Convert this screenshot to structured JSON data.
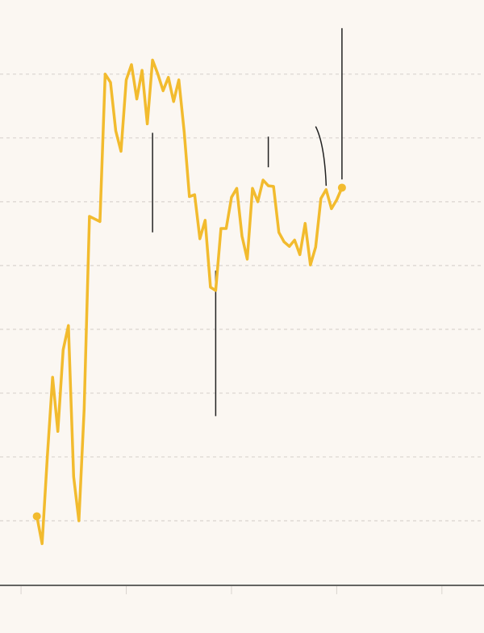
{
  "colors": {
    "background": "#fbf7f2",
    "line": "#f2bb2e",
    "grid": "#d9d4cf",
    "axis": "#333333",
    "annotation": "#222222"
  },
  "chart_data": {
    "type": "line",
    "title": "",
    "xlabel": "",
    "ylabel": "",
    "grid": true,
    "legend": "none",
    "xlim": [
      0,
      92
    ],
    "ylim": [
      0,
      8.2
    ],
    "y_gridlines": [
      1,
      2,
      3,
      4,
      5,
      6,
      7,
      8
    ],
    "x_ticks": [
      4,
      24,
      44,
      64,
      84
    ],
    "series": [
      {
        "values": [
          [
            7,
            1.07
          ],
          [
            8,
            0.64
          ],
          [
            9,
            2.01
          ],
          [
            10,
            3.25
          ],
          [
            11,
            2.4
          ],
          [
            12,
            3.68
          ],
          [
            13,
            4.06
          ],
          [
            14,
            1.69
          ],
          [
            15,
            1.0
          ],
          [
            16,
            2.74
          ],
          [
            17,
            5.77
          ],
          [
            18,
            5.73
          ],
          [
            19,
            5.69
          ],
          [
            20,
            8.0
          ],
          [
            21,
            7.87
          ],
          [
            22,
            7.11
          ],
          [
            23,
            6.79
          ],
          [
            24,
            7.91
          ],
          [
            25,
            8.15
          ],
          [
            26,
            7.61
          ],
          [
            27,
            8.06
          ],
          [
            28,
            7.22
          ],
          [
            29,
            8.22
          ],
          [
            30,
            8.0
          ],
          [
            31,
            7.74
          ],
          [
            32,
            7.95
          ],
          [
            33,
            7.57
          ],
          [
            34,
            7.91
          ],
          [
            35,
            7.1
          ],
          [
            36,
            6.08
          ],
          [
            37,
            6.11
          ],
          [
            38,
            5.42
          ],
          [
            39,
            5.71
          ],
          [
            40,
            4.66
          ],
          [
            41,
            4.61
          ],
          [
            42,
            5.58
          ],
          [
            43,
            5.58
          ],
          [
            44,
            6.07
          ],
          [
            45,
            6.21
          ],
          [
            46,
            5.46
          ],
          [
            47,
            5.1
          ],
          [
            48,
            6.21
          ],
          [
            49,
            6.0
          ],
          [
            50,
            6.34
          ],
          [
            51,
            6.25
          ],
          [
            52,
            6.24
          ],
          [
            53,
            5.52
          ],
          [
            54,
            5.37
          ],
          [
            55,
            5.3
          ],
          [
            56,
            5.4
          ],
          [
            57,
            5.17
          ],
          [
            58,
            5.66
          ],
          [
            59,
            5.01
          ],
          [
            60,
            5.29
          ],
          [
            61,
            6.05
          ],
          [
            62,
            6.19
          ],
          [
            63,
            5.89
          ],
          [
            64,
            6.03
          ],
          [
            65,
            6.22
          ]
        ],
        "endpoints": [
          [
            7,
            1.07
          ],
          [
            65,
            6.22
          ]
        ]
      }
    ],
    "annotations": [
      {
        "type": "leader",
        "from": [
          29,
          7.08
        ],
        "to": [
          29,
          5.52
        ]
      },
      {
        "type": "leader",
        "from": [
          41,
          4.92
        ],
        "to": [
          41,
          2.64
        ]
      },
      {
        "type": "leader",
        "from": [
          51,
          7.02
        ],
        "to": [
          51,
          6.54
        ]
      },
      {
        "type": "curved-leader",
        "from": [
          62,
          6.25
        ],
        "to": [
          60,
          7.18
        ]
      },
      {
        "type": "leader",
        "from": [
          65,
          6.35
        ],
        "to": [
          65,
          8.72
        ]
      }
    ]
  }
}
